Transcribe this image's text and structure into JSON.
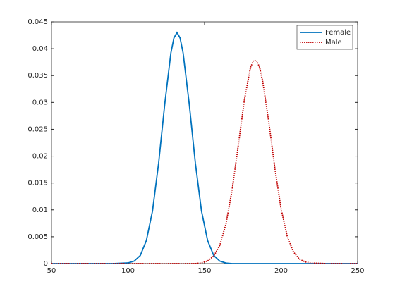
{
  "chart_data": {
    "type": "line",
    "x": [
      50,
      60,
      70,
      80,
      90,
      100,
      104,
      108,
      112,
      116,
      120,
      124,
      128,
      130,
      132,
      134,
      136,
      140,
      144,
      148,
      152,
      156,
      160,
      164,
      168,
      172,
      176,
      180,
      182,
      184,
      186,
      188,
      192,
      196,
      200,
      204,
      208,
      212,
      216,
      220,
      230,
      240,
      250
    ],
    "series": [
      {
        "name": "Female",
        "color": "#0072bd",
        "line_style": "solid",
        "values": [
          0,
          0,
          0,
          0,
          0,
          0.00012,
          0.00046,
          0.0015,
          0.0043,
          0.0098,
          0.0187,
          0.0297,
          0.0392,
          0.042,
          0.043,
          0.042,
          0.0392,
          0.0297,
          0.0187,
          0.0098,
          0.0043,
          0.0015,
          0.00046,
          0.0001,
          0,
          0,
          0,
          0,
          0,
          0,
          0,
          0,
          0,
          0,
          0,
          0,
          0,
          0,
          0,
          0,
          0,
          0,
          0
        ]
      },
      {
        "name": "Male",
        "color": "#c00000",
        "line_style": "dotted",
        "values": [
          0,
          0,
          0,
          0,
          0,
          0,
          0,
          0,
          0,
          0,
          0,
          0,
          0,
          0,
          0,
          0,
          0,
          0,
          0,
          0.00014,
          0.0005,
          0.0014,
          0.0034,
          0.0074,
          0.0137,
          0.0219,
          0.0304,
          0.0365,
          0.0378,
          0.0378,
          0.0365,
          0.0339,
          0.0263,
          0.0176,
          0.0102,
          0.0051,
          0.0022,
          0.0008,
          0.0003,
          0.0001,
          0,
          0,
          0
        ]
      }
    ],
    "xlim": [
      50,
      250
    ],
    "xticks": [
      50,
      100,
      150,
      200,
      250
    ],
    "ylim": [
      0,
      0.045
    ],
    "yticks": [
      0,
      0.005,
      0.01,
      0.015,
      0.02,
      0.025,
      0.03,
      0.035,
      0.04,
      0.045
    ],
    "legend": "northeast"
  }
}
